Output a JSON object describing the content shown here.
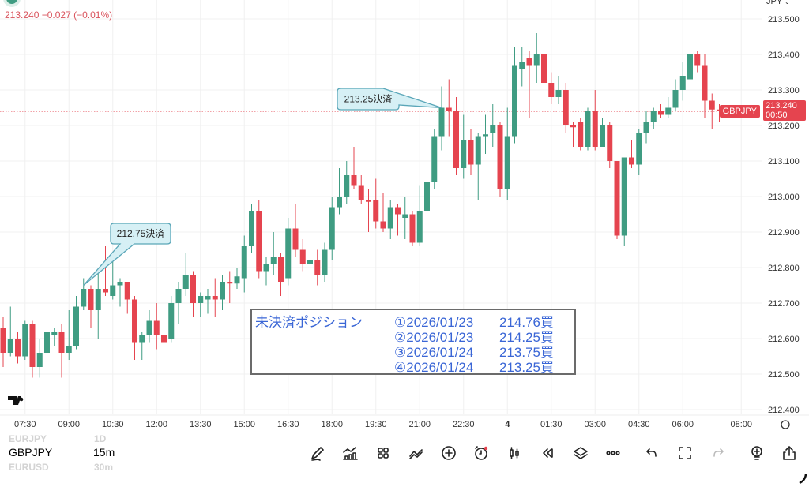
{
  "header": {
    "last": "213.240",
    "change": "−0.027",
    "change_pct": "(−0.01%)",
    "currency": "JPY"
  },
  "price_tag": {
    "symbol": "GBPJPY",
    "price": "213.240",
    "countdown": "00:50"
  },
  "colors": {
    "up": "#3f9c82",
    "down": "#e5444f",
    "text_accent": "#3a66d6",
    "callout_fill": "#d6f0f5",
    "callout_stroke": "#5aa6b8"
  },
  "chart_data": {
    "type": "candlestick",
    "symbol": "GBPJPY",
    "interval": "15m",
    "ylim": [
      212.4,
      213.5
    ],
    "y_ticks": [
      "213.500",
      "213.400",
      "213.300",
      "213.200",
      "213.100",
      "213.000",
      "212.900",
      "212.800",
      "212.700",
      "212.600",
      "212.500",
      "212.400"
    ],
    "x_ticks": [
      "07:30",
      "09:00",
      "10:30",
      "12:00",
      "13:30",
      "15:00",
      "16:30",
      "18:00",
      "19:30",
      "21:00",
      "22:30",
      "4",
      "01:30",
      "03:00",
      "04:30",
      "06:00",
      "08:00"
    ],
    "grid": true,
    "current_price": 213.24,
    "ohlc": [
      [
        212.63,
        212.66,
        212.52,
        212.56
      ],
      [
        212.56,
        212.69,
        212.55,
        212.6
      ],
      [
        212.6,
        212.62,
        212.53,
        212.55
      ],
      [
        212.55,
        212.65,
        212.54,
        212.64
      ],
      [
        212.64,
        212.65,
        212.49,
        212.52
      ],
      [
        212.52,
        212.6,
        212.49,
        212.56
      ],
      [
        212.56,
        212.64,
        212.55,
        212.62
      ],
      [
        212.61,
        212.63,
        212.58,
        212.62
      ],
      [
        212.62,
        212.64,
        212.49,
        212.56
      ],
      [
        212.56,
        212.68,
        212.54,
        212.58
      ],
      [
        212.58,
        212.72,
        212.57,
        212.69
      ],
      [
        212.69,
        212.77,
        212.68,
        212.74
      ],
      [
        212.74,
        212.75,
        212.63,
        212.68
      ],
      [
        212.68,
        212.79,
        212.6,
        212.74
      ],
      [
        212.74,
        212.86,
        212.72,
        212.73
      ],
      [
        212.72,
        212.82,
        212.71,
        212.75
      ],
      [
        212.75,
        212.77,
        212.69,
        212.76
      ],
      [
        212.76,
        212.76,
        212.67,
        212.71
      ],
      [
        212.71,
        212.72,
        212.54,
        212.59
      ],
      [
        212.59,
        212.62,
        212.54,
        212.61
      ],
      [
        212.61,
        212.68,
        212.59,
        212.65
      ],
      [
        212.65,
        212.7,
        212.57,
        212.61
      ],
      [
        212.61,
        212.64,
        212.56,
        212.59
      ],
      [
        212.6,
        212.72,
        212.59,
        212.7
      ],
      [
        212.7,
        212.76,
        212.64,
        212.74
      ],
      [
        212.74,
        212.84,
        212.72,
        212.78
      ],
      [
        212.78,
        212.79,
        212.66,
        212.7
      ],
      [
        212.7,
        212.73,
        212.66,
        212.72
      ],
      [
        212.71,
        212.74,
        212.67,
        212.72
      ],
      [
        212.72,
        212.77,
        212.66,
        212.71
      ],
      [
        212.71,
        212.78,
        212.68,
        212.76
      ],
      [
        212.76,
        212.79,
        212.7,
        212.755
      ],
      [
        212.755,
        212.8,
        212.74,
        212.775
      ],
      [
        212.77,
        212.89,
        212.73,
        212.86
      ],
      [
        212.86,
        212.98,
        212.84,
        212.96
      ],
      [
        212.96,
        212.99,
        212.77,
        212.79
      ],
      [
        212.79,
        212.83,
        212.75,
        212.81
      ],
      [
        212.81,
        212.9,
        212.78,
        212.83
      ],
      [
        212.83,
        212.84,
        212.72,
        212.76
      ],
      [
        212.77,
        212.94,
        212.75,
        212.91
      ],
      [
        212.91,
        212.98,
        212.83,
        212.85
      ],
      [
        212.85,
        212.88,
        212.79,
        212.81
      ],
      [
        212.81,
        212.9,
        212.79,
        212.82
      ],
      [
        212.82,
        212.85,
        212.75,
        212.78
      ],
      [
        212.78,
        212.87,
        212.76,
        212.85
      ],
      [
        212.85,
        213.0,
        212.82,
        212.97
      ],
      [
        212.97,
        213.08,
        212.95,
        213.0
      ],
      [
        213.0,
        213.1,
        212.98,
        213.06
      ],
      [
        213.06,
        213.14,
        213.02,
        213.03
      ],
      [
        213.03,
        213.06,
        212.98,
        212.99
      ],
      [
        212.99,
        213.02,
        212.9,
        212.985
      ],
      [
        212.99,
        213.05,
        212.91,
        212.93
      ],
      [
        212.93,
        213.01,
        212.9,
        212.91
      ],
      [
        212.91,
        212.99,
        212.88,
        212.97
      ],
      [
        212.97,
        212.98,
        212.89,
        212.95
      ],
      [
        212.94,
        213.0,
        212.88,
        212.95
      ],
      [
        212.95,
        212.96,
        212.86,
        212.87
      ],
      [
        212.87,
        213.03,
        212.86,
        212.96
      ],
      [
        212.96,
        213.05,
        212.94,
        213.04
      ],
      [
        213.04,
        213.19,
        213.02,
        213.17
      ],
      [
        213.17,
        213.31,
        213.13,
        213.25
      ],
      [
        213.25,
        213.33,
        213.17,
        213.24
      ],
      [
        213.24,
        213.28,
        213.06,
        213.08
      ],
      [
        213.08,
        213.23,
        213.05,
        213.16
      ],
      [
        213.16,
        213.19,
        213.06,
        213.09
      ],
      [
        213.09,
        213.18,
        212.99,
        213.17
      ],
      [
        213.17,
        213.23,
        213.12,
        213.175
      ],
      [
        213.18,
        213.26,
        213.14,
        213.2
      ],
      [
        213.2,
        213.21,
        213.0,
        213.02
      ],
      [
        213.02,
        213.25,
        212.99,
        213.17
      ],
      [
        213.17,
        213.42,
        213.15,
        213.37
      ],
      [
        213.36,
        213.42,
        213.31,
        213.38
      ],
      [
        213.39,
        213.41,
        213.22,
        213.37
      ],
      [
        213.37,
        213.46,
        213.32,
        213.4
      ],
      [
        213.4,
        213.4,
        213.3,
        213.32
      ],
      [
        213.32,
        213.35,
        213.26,
        213.28
      ],
      [
        213.28,
        213.34,
        213.26,
        213.3
      ],
      [
        213.3,
        213.32,
        213.18,
        213.2
      ],
      [
        213.2,
        213.21,
        213.14,
        213.195
      ],
      [
        213.21,
        213.22,
        213.13,
        213.14
      ],
      [
        213.14,
        213.25,
        213.13,
        213.24
      ],
      [
        213.24,
        213.3,
        213.13,
        213.14
      ],
      [
        213.14,
        213.22,
        213.14,
        213.2
      ],
      [
        213.2,
        213.21,
        213.08,
        213.1
      ],
      [
        213.1,
        213.1,
        212.88,
        212.89
      ],
      [
        212.89,
        213.11,
        212.86,
        213.11
      ],
      [
        213.11,
        213.16,
        213.08,
        213.09
      ],
      [
        213.09,
        213.19,
        213.06,
        213.18
      ],
      [
        213.18,
        213.24,
        213.15,
        213.21
      ],
      [
        213.21,
        213.25,
        213.19,
        213.24
      ],
      [
        213.24,
        213.26,
        213.22,
        213.23
      ],
      [
        213.23,
        213.28,
        213.22,
        213.25
      ],
      [
        213.25,
        213.33,
        213.24,
        213.3
      ],
      [
        213.3,
        213.38,
        213.27,
        213.34
      ],
      [
        213.33,
        213.43,
        213.31,
        213.4
      ],
      [
        213.4,
        213.41,
        213.35,
        213.37
      ],
      [
        213.37,
        213.4,
        213.22,
        213.27
      ],
      [
        213.27,
        213.29,
        213.19,
        213.245
      ],
      [
        213.245,
        213.26,
        213.21,
        213.24
      ]
    ],
    "annotations": [
      {
        "text": "212.75決済",
        "price": 212.75
      },
      {
        "text": "213.25決済",
        "price": 213.25
      }
    ]
  },
  "positions": {
    "title": "未決済ポジション",
    "rows": [
      {
        "date": "①2026/01/23",
        "price": "214.76買"
      },
      {
        "date": "②2026/01/23",
        "price": "214.25買"
      },
      {
        "date": "③2026/01/24",
        "price": "213.75買"
      },
      {
        "date": "④2026/01/24",
        "price": "213.25買"
      }
    ]
  },
  "footer": {
    "symbol_prev": "EURJPY",
    "symbol": "GBPJPY",
    "symbol_next": "EURUSD",
    "interval_prev": "1D",
    "interval": "15m",
    "interval_next": "30m",
    "tools": [
      "draw-icon",
      "indicators-icon",
      "templates-icon",
      "compare-icon",
      "add-icon",
      "alert-icon",
      "candles-icon",
      "replay-icon",
      "layers-icon",
      "more-icon",
      "undo-icon",
      "fullscreen-icon",
      "redo-icon",
      "ideas-icon",
      "share-icon"
    ]
  }
}
